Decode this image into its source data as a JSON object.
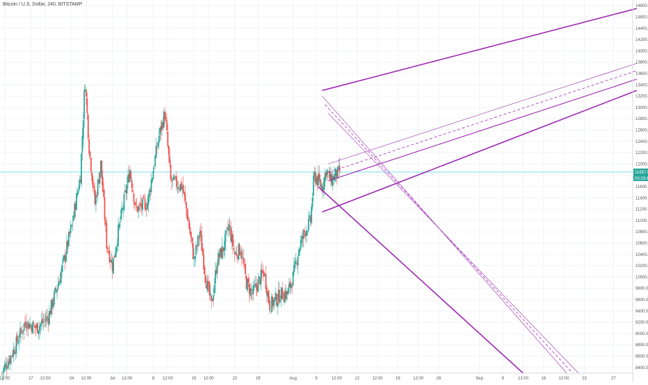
{
  "chart_data": {
    "type": "candlestick",
    "title": "Bitcoin / U.S. Dollar, 240, BITSTAMP",
    "colors": {
      "up": "#26a69a",
      "down": "#ef5350",
      "drawing": "#9c27b0",
      "price_line": "#4dd0e1",
      "grid": "#f0f3f8",
      "axis_text": "#555555"
    },
    "y_axis": {
      "position": "right",
      "ylim": [
        8300,
        14900
      ],
      "ticks": [
        8400,
        8600,
        8800,
        9000,
        9200,
        9400,
        9600,
        9800,
        10000,
        10200,
        10400,
        10600,
        10800,
        11000,
        11200,
        11400,
        11600,
        11800,
        12000,
        12200,
        12400,
        12600,
        12800,
        13000,
        13200,
        13400,
        13600,
        13800,
        14000,
        14200,
        14400,
        14600,
        14800
      ],
      "tick_labels": [
        "8400.00",
        "8600.00",
        "8800.00",
        "9000.00",
        "9200.00",
        "9400.00",
        "9600.00",
        "9800.00",
        "10000.00",
        "10200.00",
        "10400.00",
        "10600.00",
        "10800.00",
        "11000.00",
        "11200.00",
        "11400.00",
        "11600.00",
        "11800.00",
        "12000.00",
        "12200.00",
        "12400.00",
        "12600.00",
        "12800.00",
        "13000.00",
        "13200.00",
        "13400.00",
        "13600.00",
        "13800.00",
        "14000.00",
        "14200.00",
        "14400.00",
        "14600.00",
        "14800.00"
      ]
    },
    "x_axis": {
      "ticks": [
        {
          "label": "12:00",
          "t": 0.5
        },
        {
          "label": "17",
          "t": 5
        },
        {
          "label": "12:00",
          "t": 7.5
        },
        {
          "label": "24",
          "t": 12
        },
        {
          "label": "12:00",
          "t": 14.5
        },
        {
          "label": "Jul",
          "t": 19
        },
        {
          "label": "12:00",
          "t": 21.5
        },
        {
          "label": "8",
          "t": 26
        },
        {
          "label": "12:00",
          "t": 28.5
        },
        {
          "label": "15",
          "t": 33
        },
        {
          "label": "12:00",
          "t": 35.5
        },
        {
          "label": "22",
          "t": 40
        },
        {
          "label": "29",
          "t": 44
        },
        {
          "label": "Aug",
          "t": 50
        },
        {
          "label": "5",
          "t": 54
        },
        {
          "label": "12:00",
          "t": 57.5
        },
        {
          "label": "12",
          "t": 61
        },
        {
          "label": "12:00",
          "t": 64.5
        },
        {
          "label": "19",
          "t": 68
        },
        {
          "label": "12:00",
          "t": 71.5
        },
        {
          "label": "26",
          "t": 75
        },
        {
          "label": "Sep",
          "t": 82
        },
        {
          "label": "9",
          "t": 86
        },
        {
          "label": "12:00",
          "t": 89.5
        },
        {
          "label": "16",
          "t": 93
        },
        {
          "label": "12:00",
          "t": 96.5
        },
        {
          "label": "23",
          "t": 100
        },
        {
          "label": "27",
          "t": 105
        }
      ]
    },
    "price_keypoints": [
      {
        "t": 0,
        "price": 8300
      },
      {
        "t": 2,
        "price": 8700
      },
      {
        "t": 4,
        "price": 9200
      },
      {
        "t": 6,
        "price": 9100
      },
      {
        "t": 8,
        "price": 9300
      },
      {
        "t": 10,
        "price": 10000
      },
      {
        "t": 12,
        "price": 10900
      },
      {
        "t": 13.5,
        "price": 11800
      },
      {
        "t": 14.3,
        "price": 13500
      },
      {
        "t": 15,
        "price": 12300
      },
      {
        "t": 16,
        "price": 11300
      },
      {
        "t": 17,
        "price": 12000
      },
      {
        "t": 18,
        "price": 10600
      },
      {
        "t": 19,
        "price": 10200
      },
      {
        "t": 20,
        "price": 10800
      },
      {
        "t": 22,
        "price": 11900
      },
      {
        "t": 23,
        "price": 11200
      },
      {
        "t": 25,
        "price": 11300
      },
      {
        "t": 27,
        "price": 12500
      },
      {
        "t": 28,
        "price": 12900
      },
      {
        "t": 29,
        "price": 11700
      },
      {
        "t": 31,
        "price": 11600
      },
      {
        "t": 32,
        "price": 11000
      },
      {
        "t": 33,
        "price": 10300
      },
      {
        "t": 34,
        "price": 10800
      },
      {
        "t": 35,
        "price": 10000
      },
      {
        "t": 36,
        "price": 9500
      },
      {
        "t": 37,
        "price": 10300
      },
      {
        "t": 38,
        "price": 10500
      },
      {
        "t": 39,
        "price": 10900
      },
      {
        "t": 40,
        "price": 10400
      },
      {
        "t": 41,
        "price": 10500
      },
      {
        "t": 42,
        "price": 9900
      },
      {
        "t": 43,
        "price": 9700
      },
      {
        "t": 44,
        "price": 9900
      },
      {
        "t": 45,
        "price": 10100
      },
      {
        "t": 46,
        "price": 9500
      },
      {
        "t": 47,
        "price": 9600
      },
      {
        "t": 48,
        "price": 9700
      },
      {
        "t": 49,
        "price": 9700
      },
      {
        "t": 50,
        "price": 10000
      },
      {
        "t": 51,
        "price": 10500
      },
      {
        "t": 52,
        "price": 10800
      },
      {
        "t": 53,
        "price": 11000
      },
      {
        "t": 53.6,
        "price": 11800
      },
      {
        "t": 54.3,
        "price": 11700
      },
      {
        "t": 55,
        "price": 11600
      },
      {
        "t": 55.7,
        "price": 11900
      },
      {
        "t": 56.5,
        "price": 11700
      },
      {
        "t": 57.2,
        "price": 11800
      },
      {
        "t": 58,
        "price": 11857
      }
    ],
    "last_price": 11857.89,
    "last_price_label": "11857.89",
    "countdown_label": "03:23:47",
    "drawings": [
      {
        "kind": "ray",
        "style": "thick",
        "from": {
          "t": 55,
          "price": 13300
        },
        "to": {
          "t": 109,
          "price": 14750
        }
      },
      {
        "kind": "ray",
        "style": "thin",
        "from": {
          "t": 56,
          "price": 12000
        },
        "to": {
          "t": 109,
          "price": 13780
        }
      },
      {
        "kind": "ray",
        "style": "dashed",
        "from": {
          "t": 56,
          "price": 11850
        },
        "to": {
          "t": 109,
          "price": 13650
        }
      },
      {
        "kind": "ray",
        "style": "medium",
        "from": {
          "t": 56,
          "price": 11700
        },
        "to": {
          "t": 109,
          "price": 13500
        }
      },
      {
        "kind": "ray",
        "style": "thick",
        "from": {
          "t": 55,
          "price": 11150
        },
        "to": {
          "t": 109,
          "price": 13300
        }
      },
      {
        "kind": "ray",
        "style": "thick",
        "from": {
          "t": 54.3,
          "price": 11600
        },
        "to": {
          "t": 89.5,
          "price": 8300
        }
      },
      {
        "kind": "ray",
        "style": "thin",
        "from": {
          "t": 55,
          "price": 13200
        },
        "to": {
          "t": 97,
          "price": 8300
        }
      },
      {
        "kind": "ray",
        "style": "dashed",
        "from": {
          "t": 55.5,
          "price": 13050
        },
        "to": {
          "t": 98,
          "price": 8300
        }
      },
      {
        "kind": "ray",
        "style": "thin",
        "from": {
          "t": 56,
          "price": 12900
        },
        "to": {
          "t": 99,
          "price": 8300
        }
      }
    ]
  }
}
